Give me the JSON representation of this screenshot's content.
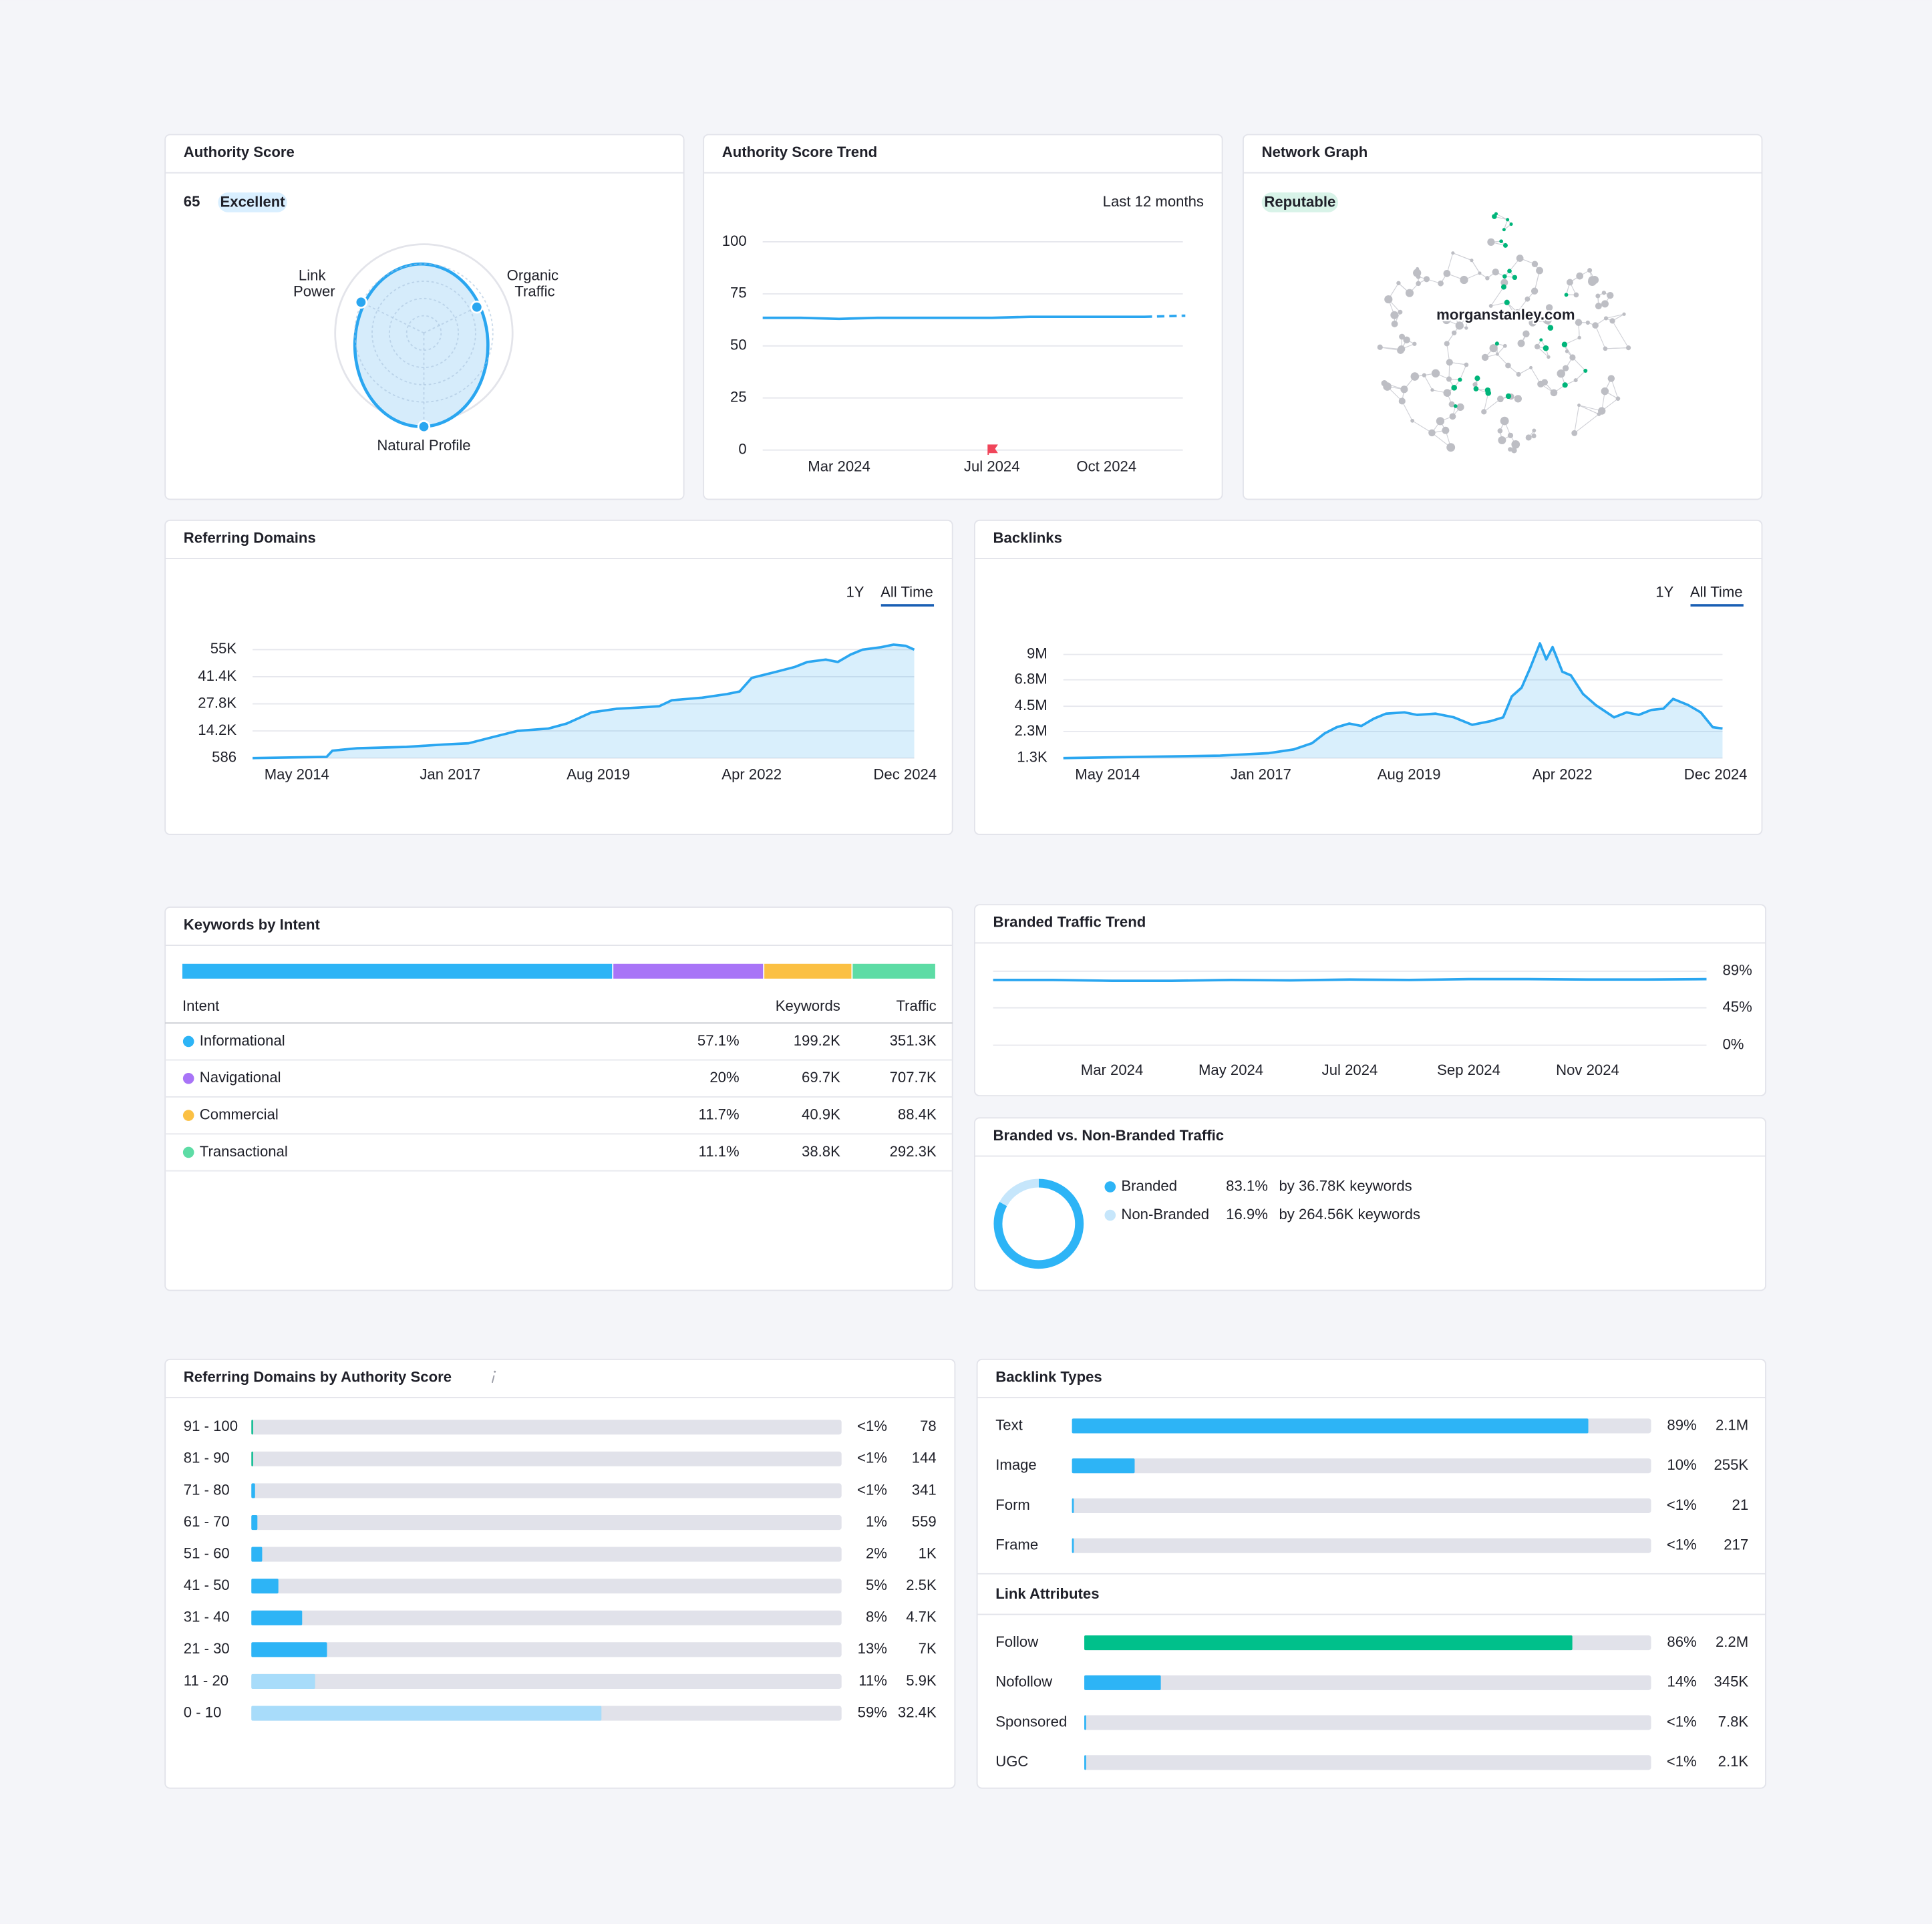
{
  "authority_score": {
    "title": "Authority Score",
    "score": 65,
    "badge": "Excellent",
    "axes": [
      "Link Power",
      "Organic Traffic",
      "Natural Profile"
    ]
  },
  "authority_trend": {
    "title": "Authority Score Trend",
    "period": "Last 12 months",
    "chart": {
      "type": "line",
      "color": "#2aa6f0",
      "categories": [
        null,
        null,
        "Mar 2024",
        null,
        null,
        null,
        "Jul 2024",
        null,
        null,
        "Oct 2024",
        null,
        null
      ],
      "values": [
        63.5,
        63.5,
        63,
        63.5,
        63.5,
        63.5,
        63.5,
        64,
        64,
        64,
        64,
        64.5
      ],
      "ylim": [
        0,
        100
      ],
      "yticks": [
        0,
        25,
        50,
        75,
        100
      ],
      "grid": true
    }
  },
  "network_graph": {
    "title": "Network Graph",
    "badge": "Reputable",
    "domain": "morganstanley.com"
  },
  "referring_domains": {
    "title": "Referring Domains",
    "tabs": [
      "1Y",
      "All Time"
    ],
    "chart": {
      "type": "line",
      "color": "#2aa6f0",
      "area": true,
      "x": [
        2013.56,
        2014.85,
        2014.95,
        2015.38,
        2016.24,
        2016.89,
        2017.32,
        2017.74,
        2018.17,
        2018.71,
        2019.03,
        2019.46,
        2019.89,
        2020.32,
        2020.64,
        2020.86,
        2021.39,
        2021.82,
        2022.04,
        2022.25,
        2022.68,
        2023.0,
        2023.22,
        2023.54,
        2023.75,
        2023.97,
        2024.18,
        2024.5,
        2024.72,
        2024.93,
        2025.08
      ],
      "values": [
        586,
        1200,
        4300,
        5500,
        6200,
        7400,
        8000,
        11100,
        14200,
        15400,
        17900,
        23500,
        25300,
        26000,
        26600,
        29600,
        30900,
        32700,
        34000,
        40800,
        43900,
        46300,
        48800,
        50000,
        48800,
        52500,
        55000,
        56200,
        57500,
        56900,
        55000
      ],
      "xlim": [
        2013.56,
        2025.08
      ],
      "xticks": [
        {
          "value": 2014.33,
          "label": "May 2014"
        },
        {
          "value": 2017.0,
          "label": "Jan 2017"
        },
        {
          "value": 2019.58,
          "label": "Aug 2019"
        },
        {
          "value": 2022.25,
          "label": "Apr 2022"
        },
        {
          "value": 2024.92,
          "label": "Dec 2024"
        }
      ],
      "ylim": [
        586,
        62400
      ],
      "yticks": [
        586,
        {
          "value": 14200,
          "label": "14.2K"
        },
        {
          "value": 27800,
          "label": "27.8K"
        },
        {
          "value": 41400,
          "label": "41.4K"
        },
        {
          "value": 55000,
          "label": "55K"
        }
      ],
      "grid": true
    }
  },
  "backlinks": {
    "title": "Backlinks",
    "tabs": [
      "1Y",
      "All Time"
    ],
    "chart": {
      "type": "line",
      "color": "#2aa6f0",
      "area": true,
      "x": [
        2013.56,
        2016.29,
        2017.14,
        2017.57,
        2017.89,
        2018.11,
        2018.32,
        2018.54,
        2018.75,
        2018.97,
        2019.18,
        2019.5,
        2019.72,
        2020.04,
        2020.36,
        2020.68,
        2021.01,
        2021.22,
        2021.37,
        2021.54,
        2021.69,
        2021.86,
        2021.97,
        2022.08,
        2022.25,
        2022.4,
        2022.61,
        2022.83,
        2023.15,
        2023.37,
        2023.58,
        2023.8,
        2024.01,
        2024.18,
        2024.44,
        2024.66,
        2024.87,
        2025.04
      ],
      "values": [
        1300,
        216000,
        430000,
        751000,
        1290000,
        2140000,
        2680000,
        3000000,
        2790000,
        3430000,
        3860000,
        3970000,
        3750000,
        3860000,
        3540000,
        2890000,
        3220000,
        3540000,
        5360000,
        6110000,
        7820000,
        9960000,
        8570000,
        9640000,
        7500000,
        7180000,
        5570000,
        4610000,
        3540000,
        3970000,
        3750000,
        4180000,
        4290000,
        5140000,
        4610000,
        3970000,
        2680000,
        2570000
      ],
      "xlim": [
        2013.56,
        2025.04
      ],
      "xticks": [
        {
          "value": 2014.33,
          "label": "May 2014"
        },
        {
          "value": 2017.0,
          "label": "Jan 2017"
        },
        {
          "value": 2019.58,
          "label": "Aug 2019"
        },
        {
          "value": 2022.25,
          "label": "Apr 2022"
        },
        {
          "value": 2024.92,
          "label": "Dec 2024"
        }
      ],
      "ylim": [
        1300,
        10700000
      ],
      "yticks": [
        {
          "value": 1300,
          "label": "1.3K"
        },
        {
          "value": 2300000,
          "label": "2.3M"
        },
        {
          "value": 4500000,
          "label": "4.5M"
        },
        {
          "value": 6800000,
          "label": "6.8M"
        },
        {
          "value": 9000000,
          "label": "9M"
        }
      ],
      "grid": true
    }
  },
  "keywords_by_intent": {
    "title": "Keywords by Intent",
    "columns": [
      "Intent",
      "Keywords",
      "Traffic"
    ],
    "rows": [
      {
        "name": "Informational",
        "color": "#2db4f6",
        "value": 57.1,
        "value_label": "57.1%",
        "keywords": "199.2K",
        "traffic": "351.3K"
      },
      {
        "name": "Navigational",
        "color": "#a874f7",
        "value": 20,
        "value_label": "20%",
        "keywords": "69.7K",
        "traffic": "707.7K"
      },
      {
        "name": "Commercial",
        "color": "#fbc043",
        "value": 11.7,
        "value_label": "11.7%",
        "keywords": "40.9K",
        "traffic": "88.4K"
      },
      {
        "name": "Transactional",
        "color": "#5ddca5",
        "value": 11.1,
        "value_label": "11.1%",
        "keywords": "38.8K",
        "traffic": "292.3K"
      }
    ]
  },
  "branded_traffic_trend": {
    "title": "Branded Traffic Trend",
    "chart": {
      "type": "line",
      "color": "#2aa6f0",
      "categories": [
        null,
        null,
        "Mar 2024",
        null,
        "May 2024",
        null,
        "Jul 2024",
        null,
        "Sep 2024",
        null,
        "Nov 2024",
        null,
        null
      ],
      "values": [
        78.5,
        78.5,
        77.5,
        77.5,
        78.5,
        78,
        79,
        78.5,
        79.5,
        79.5,
        79,
        79,
        79.5
      ],
      "ylim": [
        0,
        89
      ],
      "yticks": [
        {
          "value": 0,
          "label": "0%"
        },
        {
          "value": 45,
          "label": "45%"
        },
        {
          "value": 89,
          "label": "89%"
        }
      ],
      "grid": true
    }
  },
  "branded_split": {
    "title": "Branded vs. Non-Branded Traffic",
    "items": [
      {
        "name": "Branded",
        "color": "#2db4f6",
        "value": 83.1,
        "value_label": "83.1%",
        "detail": "by 36.78K keywords"
      },
      {
        "name": "Non-Branded",
        "color": "#c6e6fb",
        "value": 16.9,
        "value_label": "16.9%",
        "detail": "by 264.56K keywords"
      }
    ]
  },
  "referring_domains_by_as": {
    "title": "Referring Domains by Authority Score",
    "rows": [
      {
        "name": "91 - 100",
        "share": "<1%",
        "value": 78,
        "color": "#1dbf98"
      },
      {
        "name": "81 - 90",
        "share": "<1%",
        "value": 144,
        "color": "#1dbf98"
      },
      {
        "name": "71 - 80",
        "share": "<1%",
        "value": 341,
        "color": "#2db4f6"
      },
      {
        "name": "61 - 70",
        "share": "1%",
        "value": 559,
        "color": "#2db4f6"
      },
      {
        "name": "51 - 60",
        "share": "2%",
        "value": 1000,
        "value_label": "1K",
        "color": "#2db4f6"
      },
      {
        "name": "41 - 50",
        "share": "5%",
        "value": 2500,
        "value_label": "2.5K",
        "color": "#2db4f6"
      },
      {
        "name": "31 - 40",
        "share": "8%",
        "value": 4700,
        "value_label": "4.7K",
        "color": "#2db4f6"
      },
      {
        "name": "21 - 30",
        "share": "13%",
        "value": 7000,
        "value_label": "7K",
        "color": "#2db4f6"
      },
      {
        "name": "11 - 20",
        "share": "11%",
        "value": 5900,
        "value_label": "5.9K",
        "color": "#a8dcfa"
      },
      {
        "name": "0 - 10",
        "share": "59%",
        "value": 32400,
        "value_label": "32.4K",
        "color": "#a8dcfa"
      }
    ]
  },
  "backlink_types": {
    "title": "Backlink Types",
    "rows": [
      {
        "name": "Text",
        "share": "89%",
        "value": 2100000,
        "value_label": "2.1M",
        "color": "#2db4f6"
      },
      {
        "name": "Image",
        "share": "10%",
        "value": 255000,
        "value_label": "255K",
        "color": "#2db4f6"
      },
      {
        "name": "Form",
        "share": "<1%",
        "value": 21,
        "color": "#2db4f6"
      },
      {
        "name": "Frame",
        "share": "<1%",
        "value": 217,
        "color": "#2db4f6"
      }
    ]
  },
  "link_attributes": {
    "title": "Link Attributes",
    "rows": [
      {
        "name": "Follow",
        "share": "86%",
        "value": 2200000,
        "value_label": "2.2M",
        "color": "#00c08b"
      },
      {
        "name": "Nofollow",
        "share": "14%",
        "value": 345000,
        "value_label": "345K",
        "color": "#2db4f6"
      },
      {
        "name": "Sponsored",
        "share": "<1%",
        "value": 7800,
        "value_label": "7.8K",
        "color": "#2db4f6"
      },
      {
        "name": "UGC",
        "share": "<1%",
        "value": 2100,
        "value_label": "2.1K",
        "color": "#2db4f6"
      }
    ]
  }
}
